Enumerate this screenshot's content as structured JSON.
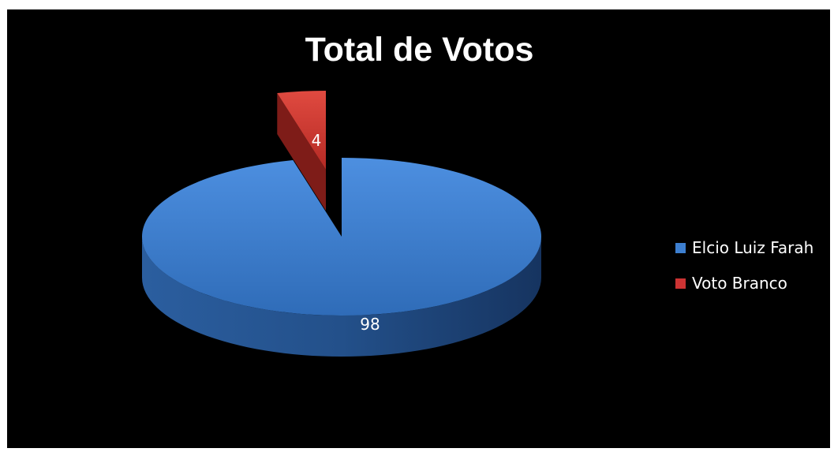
{
  "chart_data": {
    "type": "pie",
    "title": "Total de Votos",
    "categories": [
      "Elcio Luiz Farah",
      "Voto Branco"
    ],
    "values": [
      98,
      4
    ],
    "data_labels": [
      "98",
      "4"
    ],
    "colors": [
      "#3d7fd0",
      "#cc3333"
    ],
    "legend_position": "right",
    "style": "3d-exploded"
  }
}
